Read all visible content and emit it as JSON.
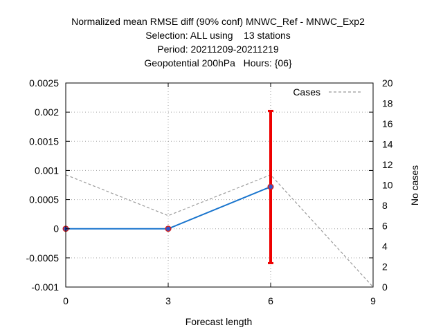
{
  "chart_data": {
    "type": "line",
    "title_lines": [
      "Normalized mean RMSE diff (90% conf) MNWC_Ref - MNWC_Exp2",
      "Selection: ALL using    13 stations",
      "Period: 20211209-20211219",
      "Geopotential 200hPa   Hours: {06}"
    ],
    "xlabel": "Forecast length",
    "ylabel": "",
    "y2label": "No cases",
    "xlim": [
      0,
      9
    ],
    "ylim": [
      -0.001,
      0.0025
    ],
    "y2lim": [
      0,
      20
    ],
    "x_ticks": [
      "0",
      "3",
      "6",
      "9"
    ],
    "x_tick_values": [
      0,
      3,
      6,
      9
    ],
    "y_ticks": [
      "0.0025",
      "0.002",
      "0.0015",
      "0.001",
      "0.0005",
      "0",
      "-0.0005",
      "-0.001"
    ],
    "y_tick_values": [
      0.0025,
      0.002,
      0.0015,
      0.001,
      0.0005,
      0,
      -0.0005,
      -0.001
    ],
    "y2_ticks": [
      "20",
      "18",
      "16",
      "14",
      "12",
      "10",
      "8",
      "6",
      "4",
      "2",
      "0"
    ],
    "y2_tick_values": [
      20,
      18,
      16,
      14,
      12,
      10,
      8,
      6,
      4,
      2,
      0
    ],
    "grid": true,
    "legend_position": "top-right",
    "series": [
      {
        "name": "",
        "axis": "y",
        "color": "#1874cd",
        "marker_color": "#3355cc",
        "x": [
          0,
          3,
          6
        ],
        "values": [
          0,
          0,
          0.00072
        ]
      },
      {
        "name": "Cases",
        "axis": "y2",
        "style": "dashed",
        "color": "#999999",
        "x": [
          0,
          3,
          6,
          9
        ],
        "values": [
          11,
          7,
          11,
          0
        ]
      }
    ],
    "error_bars": [
      {
        "x": 6,
        "low": -0.00059,
        "high": 0.00202,
        "color": "#ee0000"
      }
    ],
    "point_markers": [
      {
        "x": 0,
        "y": 0,
        "color": "#cc2222"
      },
      {
        "x": 3,
        "y": 0,
        "color": "#cc2222"
      },
      {
        "x": 6,
        "y": 0.00072,
        "color": "#cc2222"
      }
    ]
  }
}
